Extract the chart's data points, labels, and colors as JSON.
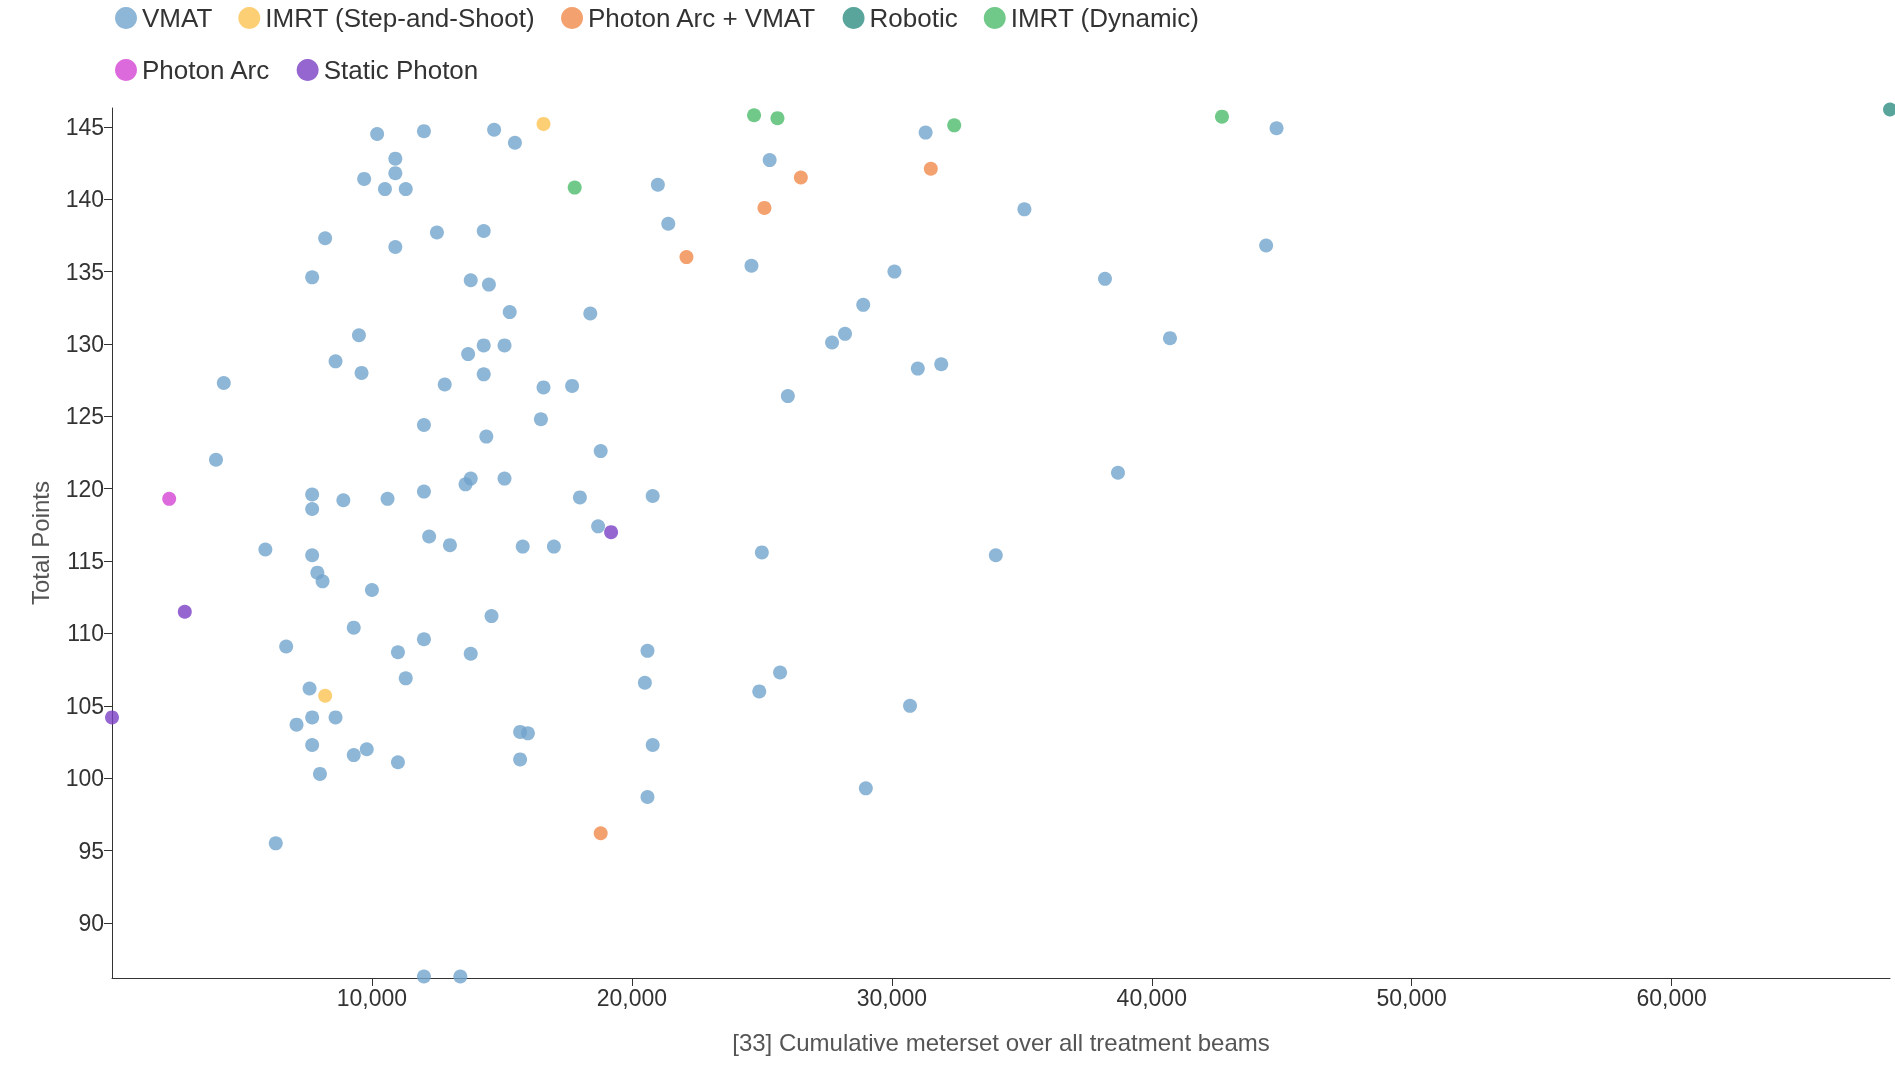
{
  "chart_data": {
    "type": "scatter",
    "xlabel": "[33] Cumulative meterset over all treatment beams",
    "ylabel": "Total Points",
    "xlim": [
      0,
      68400
    ],
    "ylim": [
      86.2,
      146.3
    ],
    "xticks": [
      {
        "value": 10000,
        "label": "10,000"
      },
      {
        "value": 20000,
        "label": "20,000"
      },
      {
        "value": 30000,
        "label": "30,000"
      },
      {
        "value": 40000,
        "label": "40,000"
      },
      {
        "value": 50000,
        "label": "50,000"
      },
      {
        "value": 60000,
        "label": "60,000"
      }
    ],
    "yticks": [
      90,
      95,
      100,
      105,
      110,
      115,
      120,
      125,
      130,
      135,
      140,
      145
    ],
    "grid": false,
    "legend": "top left",
    "marker": "circle",
    "series": [
      {
        "name": "VMAT",
        "color": "#72a4cc",
        "x": [
          10200,
          12000,
          14700,
          15500,
          10900,
          10900,
          9700,
          10500,
          11300,
          8200,
          10900,
          12500,
          14300,
          7700,
          13800,
          14500,
          15300,
          18400,
          9500,
          14300,
          15100,
          13700,
          8600,
          9600,
          14300,
          4300,
          12800,
          16600,
          17700,
          16500,
          12000,
          14400,
          18800,
          4000,
          15100,
          13800,
          13600,
          7700,
          12000,
          8900,
          10600,
          18000,
          20800,
          7700,
          18700,
          12200,
          13000,
          5900,
          15800,
          17000,
          7700,
          7900,
          8100,
          10000,
          14600,
          9300,
          12000,
          6700,
          11000,
          13800,
          11300,
          7600,
          7100,
          7700,
          8600,
          7700,
          9300,
          9800,
          11000,
          8000,
          15700,
          16000,
          15700,
          6300,
          12000,
          13400,
          21000,
          21400,
          24600,
          25300,
          31300,
          30100,
          28900,
          27700,
          28200,
          26000,
          31000,
          31900,
          35100,
          38200,
          40700,
          38700,
          34000,
          25000,
          44400,
          44800,
          20600,
          20500,
          20800,
          20600,
          24900,
          25700,
          30700,
          29000
        ],
        "values": [
          144.5,
          144.7,
          144.8,
          143.9,
          142.8,
          141.8,
          141.4,
          140.7,
          140.7,
          137.3,
          136.7,
          137.7,
          137.8,
          134.6,
          134.4,
          134.1,
          132.2,
          132.1,
          130.6,
          129.9,
          129.9,
          129.3,
          128.8,
          128.0,
          127.9,
          127.3,
          127.2,
          127.0,
          127.1,
          124.8,
          124.4,
          123.6,
          122.6,
          122.0,
          120.7,
          120.7,
          120.3,
          119.6,
          119.8,
          119.2,
          119.3,
          119.4,
          119.5,
          118.6,
          117.4,
          116.7,
          116.1,
          115.8,
          116.0,
          116.0,
          115.4,
          114.2,
          113.6,
          113.0,
          111.2,
          110.4,
          109.6,
          109.1,
          108.7,
          108.6,
          106.9,
          106.2,
          103.7,
          104.2,
          104.2,
          102.3,
          101.6,
          102.0,
          101.1,
          100.3,
          103.2,
          103.1,
          101.3,
          95.5,
          86.3,
          86.3,
          141.0,
          138.3,
          135.4,
          142.7,
          144.6,
          135.0,
          132.7,
          130.1,
          130.7,
          126.4,
          128.3,
          128.6,
          139.3,
          134.5,
          130.4,
          121.1,
          115.4,
          115.6,
          136.8,
          144.9,
          108.8,
          106.6,
          102.3,
          98.7,
          106.0,
          107.3,
          105.0,
          99.3
        ]
      },
      {
        "name": "IMRT (Step-and-Shoot)",
        "color": "#fdc352",
        "x": [
          16600,
          8200
        ],
        "values": [
          145.2,
          105.7
        ]
      },
      {
        "name": "Photon Arc + VMAT",
        "color": "#f08a4b",
        "x": [
          22100,
          25100,
          26500,
          31500,
          18800
        ],
        "values": [
          136.0,
          139.4,
          141.5,
          142.1,
          96.2
        ]
      },
      {
        "name": "Robotic",
        "color": "#2f8f83",
        "x": [
          68400
        ],
        "values": [
          146.2
        ]
      },
      {
        "name": "IMRT (Dynamic)",
        "color": "#4cbb6c",
        "x": [
          17800,
          24700,
          25600,
          32400,
          42700
        ],
        "values": [
          140.8,
          145.8,
          145.6,
          145.1,
          145.7
        ]
      },
      {
        "name": "Photon Arc",
        "color": "#d445d4",
        "x": [
          2200
        ],
        "values": [
          119.3
        ]
      },
      {
        "name": "Static Photon",
        "color": "#7b3fc4",
        "x": [
          0,
          2800,
          19200
        ],
        "values": [
          104.2,
          111.5,
          117.0
        ]
      }
    ]
  }
}
